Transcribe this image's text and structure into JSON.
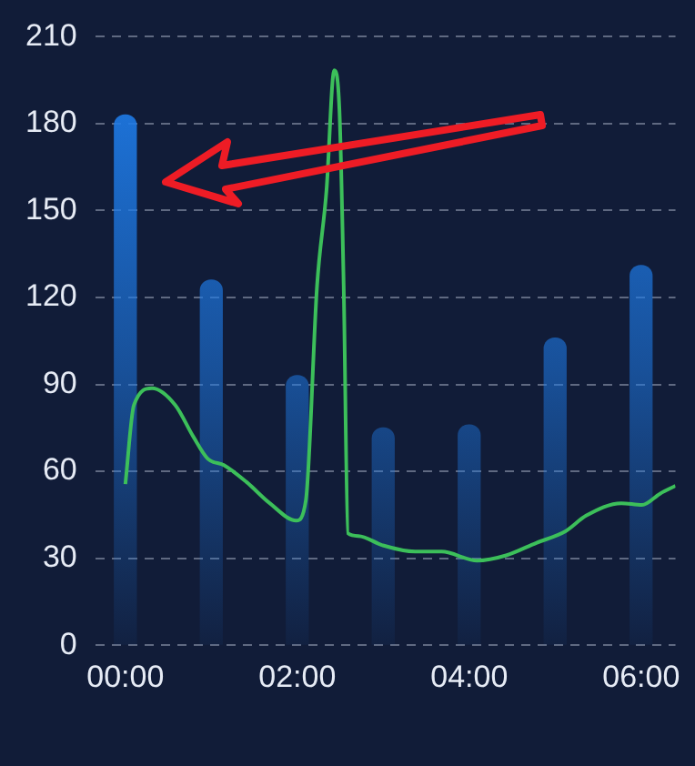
{
  "chart_data": {
    "type": "bar",
    "xlim": [
      -0.35,
      6.4
    ],
    "xticks": [
      {
        "value": 0,
        "label": "00:00"
      },
      {
        "value": 2,
        "label": "02:00"
      },
      {
        "value": 4,
        "label": "04:00"
      },
      {
        "value": 6,
        "label": "06:00"
      }
    ],
    "ylim": [
      0,
      210
    ],
    "yticks": [
      0,
      30,
      60,
      90,
      120,
      150,
      180,
      210
    ],
    "grid": "y",
    "legend": false,
    "series": [
      {
        "color": "#1e7be8",
        "x": [
          0,
          1,
          2,
          3,
          4,
          5,
          6
        ],
        "values": [
          183,
          126,
          93,
          75,
          76,
          106,
          131
        ]
      },
      {
        "type": "line",
        "color": "#3cbf5a",
        "marker": "none",
        "x": [
          0,
          0.1,
          0.31,
          0.58,
          0.79,
          0.96,
          1.15,
          1.41,
          1.68,
          1.99,
          2.1,
          2.23,
          2.34,
          2.43,
          2.49,
          2.54,
          2.59,
          2.71,
          2.99,
          3.37,
          3.68,
          4.09,
          4.43,
          4.78,
          5.12,
          5.36,
          5.77,
          6.01,
          6.22,
          6.4
        ],
        "values": [
          55.6,
          82.9,
          88.7,
          82.9,
          72,
          64.3,
          62.1,
          56.3,
          49,
          43,
          50,
          124,
          157,
          198.4,
          185,
          124,
          38.6,
          37.7,
          34.5,
          32.3,
          32.3,
          29.2,
          31,
          35.3,
          39.3,
          44.7,
          49,
          48.4,
          52.3,
          55
        ]
      }
    ]
  }
}
